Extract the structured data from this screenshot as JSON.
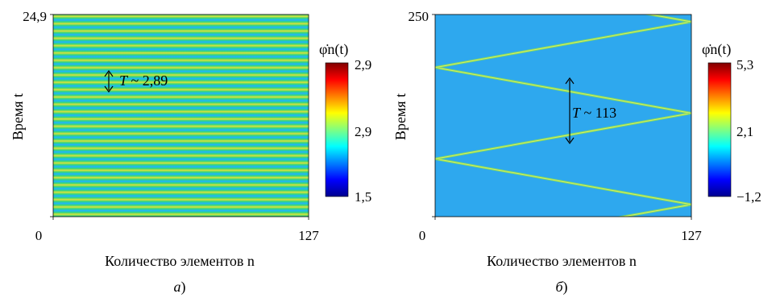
{
  "chart_data": [
    {
      "type": "heatmap",
      "panel_label": "а",
      "xlabel": "Количество элементов n",
      "xlabel_var": "n",
      "ylabel": "Время t",
      "ylabel_var": "t",
      "xlim": [
        0,
        127
      ],
      "ylim": [
        0,
        24.9
      ],
      "x_tick_labels": [
        "0",
        "127"
      ],
      "y_tick_labels": [
        "24,9"
      ],
      "pattern": "horizontal-stripes",
      "colorbar": {
        "label": "φ̇n(t)",
        "tick_labels": [
          "2,9",
          "2,9",
          "1,5"
        ],
        "colormap": "jet"
      },
      "annotation": {
        "text": "T ~ 2,89",
        "var": "T",
        "value_text": " ~ 2,89",
        "period": 2.89
      }
    },
    {
      "type": "heatmap",
      "panel_label": "б",
      "xlabel": "Количество элементов n",
      "xlabel_var": "n",
      "ylabel": "Время t",
      "ylabel_var": "t",
      "xlim": [
        0,
        127
      ],
      "ylim": [
        0,
        250
      ],
      "x_tick_labels": [
        "0",
        "127"
      ],
      "y_tick_labels": [
        "250"
      ],
      "pattern": "zigzag-fronts",
      "colorbar": {
        "label": "φ̇n(t)",
        "tick_labels": [
          "5,3",
          "2,1",
          "−1,2"
        ],
        "colormap": "jet"
      },
      "annotation": {
        "text": "T ~ 113",
        "var": "T",
        "value_text": " ~ 113",
        "period": 113
      }
    }
  ],
  "colors": {
    "jet": [
      "#00008f",
      "#0000ff",
      "#0080ff",
      "#00ffff",
      "#80ff80",
      "#ffff00",
      "#ff8000",
      "#ff0000",
      "#800000"
    ],
    "stripe_cycle": [
      "#33d57c",
      "#d8e43a",
      "#33d57c",
      "#1fb5ff",
      "#33d57c"
    ],
    "background_b": "#2ea8ee",
    "front_b": "#7ad96a"
  }
}
